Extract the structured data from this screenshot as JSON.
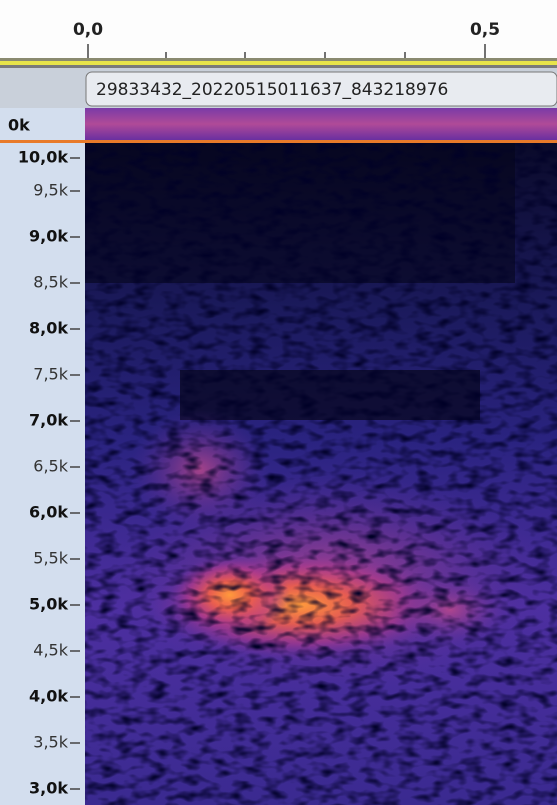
{
  "ruler": {
    "labels": [
      "0,0",
      "0,5"
    ]
  },
  "track": {
    "name": "29833432_20220515011637_843218976",
    "collapsed_label": "0k",
    "frequency_labels": [
      "10,0k",
      "9,5k",
      "9,0k",
      "8,5k",
      "8,0k",
      "7,5k",
      "7,0k",
      "6,5k",
      "6,0k",
      "5,5k",
      "5,0k",
      "4,5k",
      "4,0k",
      "3,5k",
      "3,0k"
    ]
  }
}
